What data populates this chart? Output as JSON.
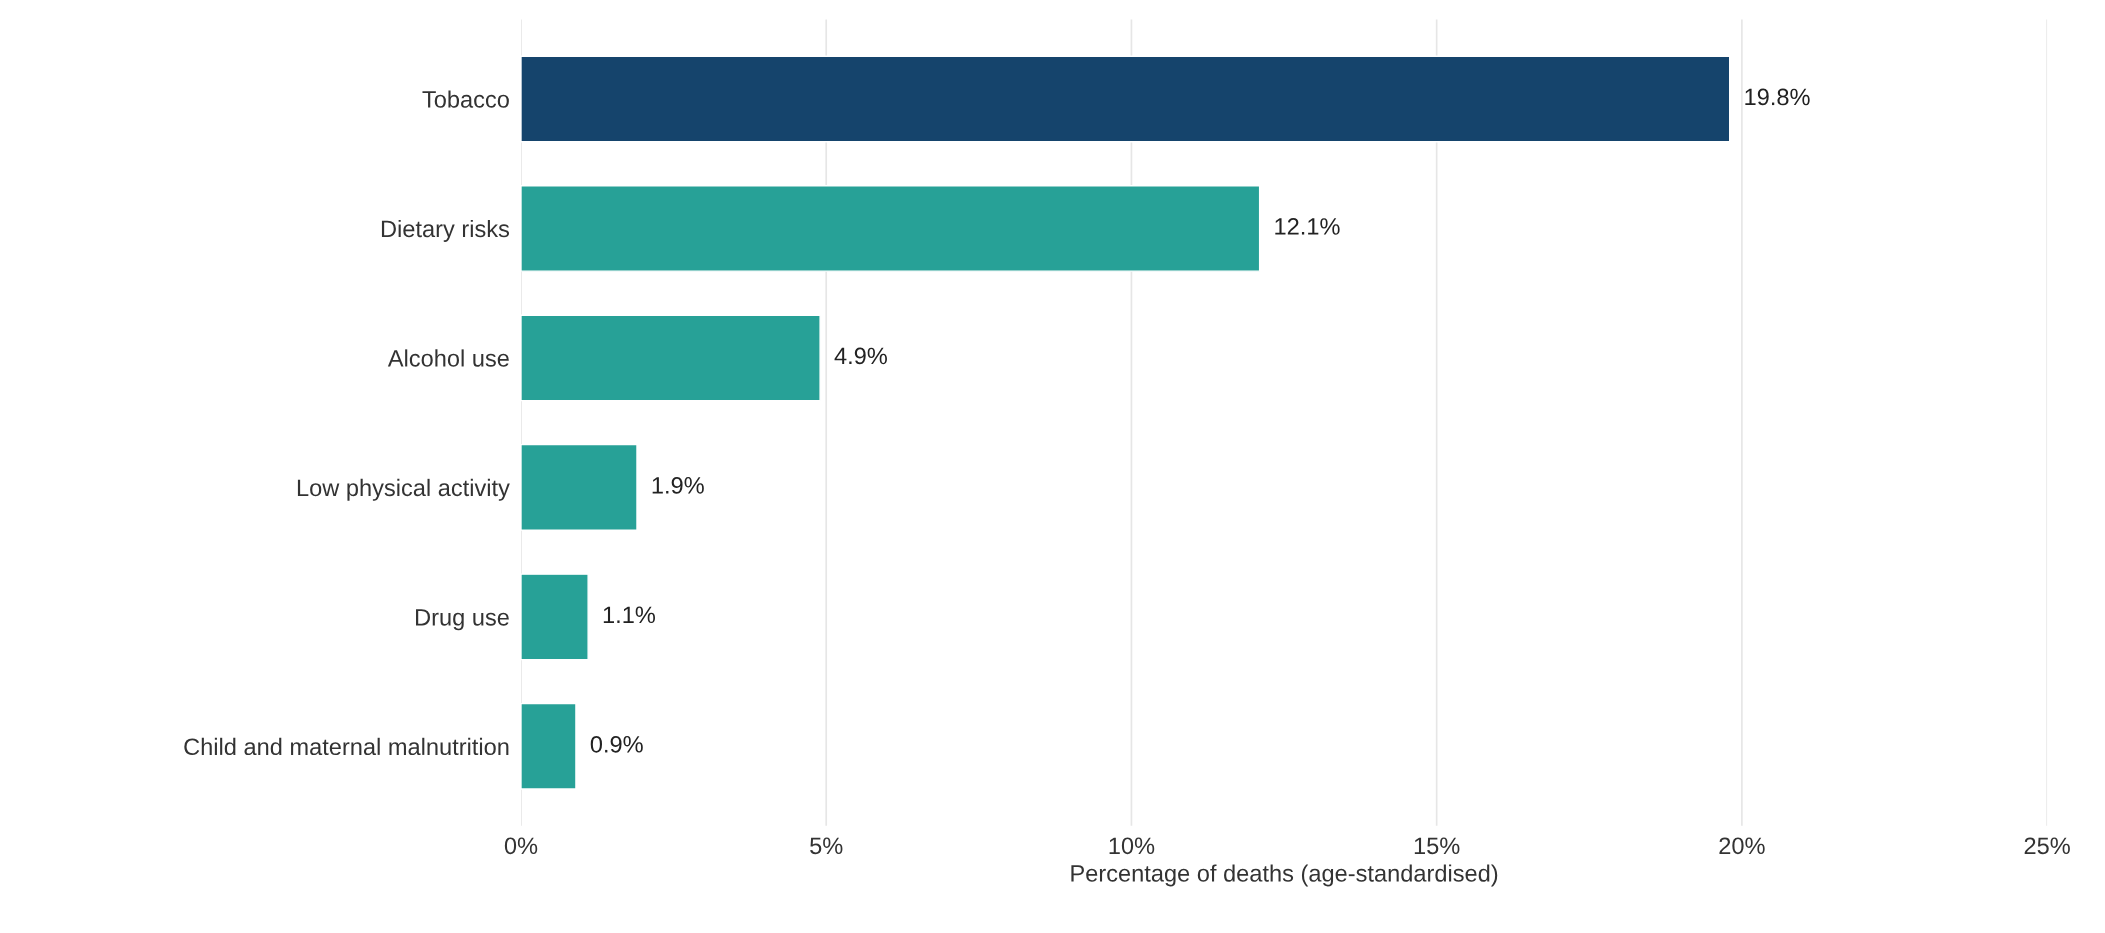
{
  "chart_data": {
    "type": "bar",
    "orientation": "horizontal",
    "xlabel": "Percentage of deaths (age-standardised)",
    "categories": [
      "Tobacco",
      "Dietary risks",
      "Alcohol use",
      "Low physical activity",
      "Drug use",
      "Child and maternal malnutrition"
    ],
    "values": [
      19.8,
      12.1,
      4.9,
      1.9,
      1.1,
      0.9
    ],
    "colors": [
      "#15446c",
      "#27a197",
      "#27a197",
      "#27a197",
      "#27a197",
      "#27a197"
    ],
    "value_labels": [
      "19.8%",
      "12.1%",
      "4.9%",
      "1.9%",
      "1.1%",
      "0.9%"
    ],
    "xlim": [
      0,
      25
    ],
    "xticks": [
      {
        "value": 0,
        "label": "0%"
      },
      {
        "value": 5,
        "label": "5%"
      },
      {
        "value": 10,
        "label": "10%"
      },
      {
        "value": 15,
        "label": "15%"
      },
      {
        "value": 20,
        "label": "20%"
      },
      {
        "value": 25,
        "label": "25%"
      }
    ],
    "grid": "x",
    "legend": false
  }
}
